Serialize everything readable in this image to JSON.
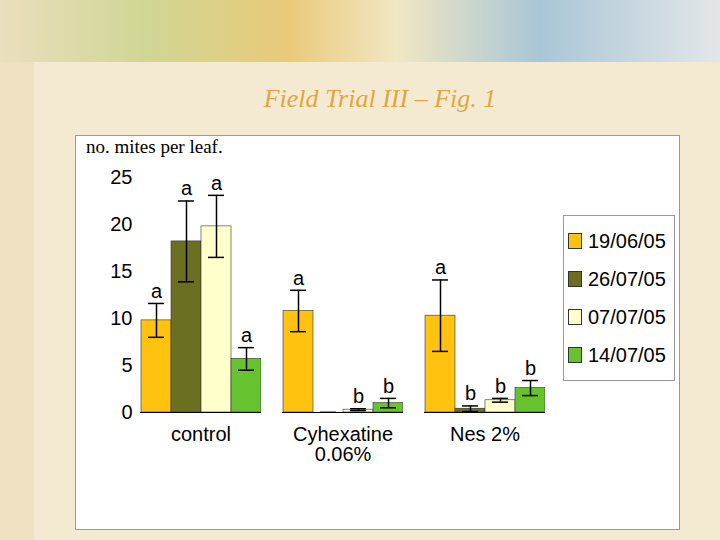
{
  "chart_data": {
    "type": "bar",
    "title": "Field Trial III – Fig. 1",
    "y_label": "no. mites per leaf.",
    "categories": [
      "control",
      "Cyhexatine 0.06%",
      "Nes 2%"
    ],
    "series": [
      {
        "name": "19/06/05",
        "color": "#FFC20E",
        "values": [
          9.8,
          10.8,
          10.3
        ],
        "errors": [
          1.8,
          2.2,
          3.8
        ],
        "letters": [
          "a",
          "a",
          "a"
        ]
      },
      {
        "name": "26/07/05",
        "color": "#6B7020",
        "values": [
          18.2,
          0,
          0.4
        ],
        "errors": [
          4.3,
          0,
          0.3
        ],
        "letters": [
          "a",
          null,
          "b"
        ]
      },
      {
        "name": "07/07/05",
        "color": "#FFFFCC",
        "values": [
          19.8,
          0.3,
          1.3
        ],
        "errors": [
          3.3,
          0.1,
          0.2
        ],
        "letters": [
          "a",
          "b",
          "b"
        ]
      },
      {
        "name": "14/07/05",
        "color": "#66C22E",
        "values": [
          5.7,
          1.0,
          2.6
        ],
        "errors": [
          1.2,
          0.5,
          0.8
        ],
        "letters": [
          "a",
          "b",
          "b"
        ]
      }
    ],
    "ylim": [
      0,
      25
    ],
    "yticks": [
      0,
      5,
      10,
      15,
      20,
      25
    ],
    "grid": false,
    "legend": "right"
  }
}
